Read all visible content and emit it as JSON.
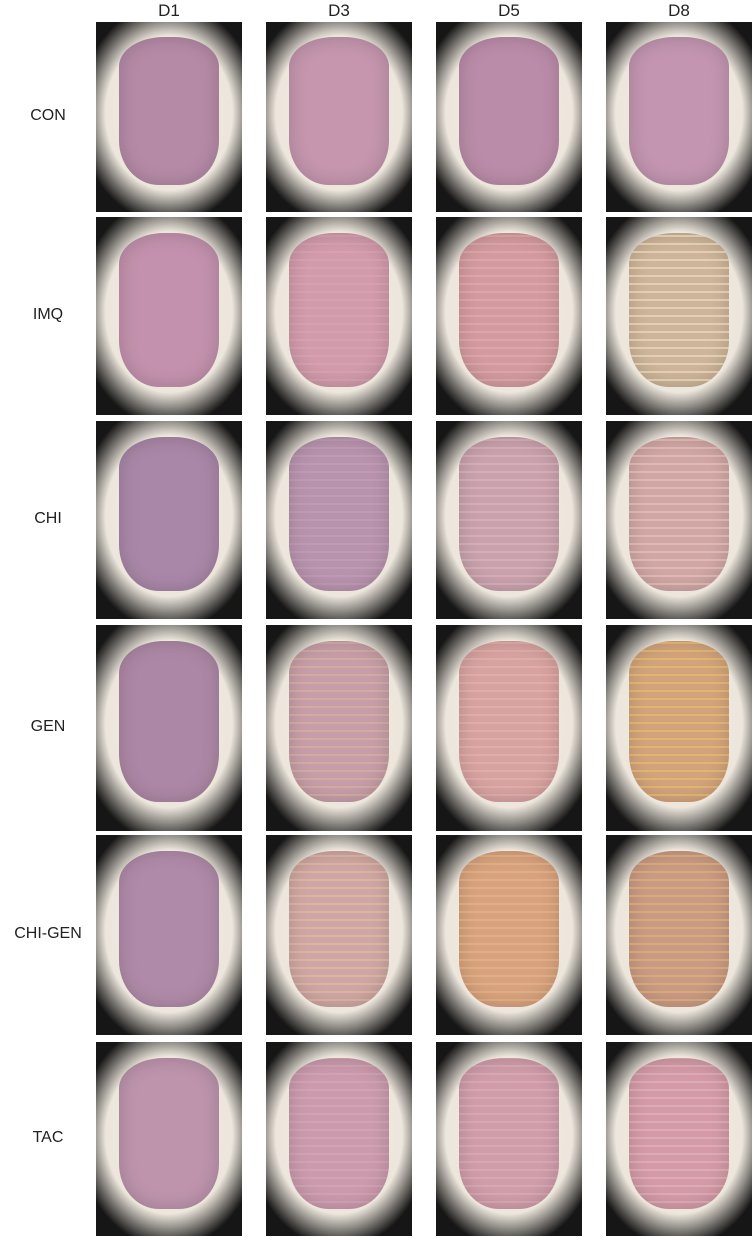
{
  "columns": [
    "D1",
    "D3",
    "D5",
    "D8"
  ],
  "rows": [
    "CON",
    "IMQ",
    "CHI",
    "GEN",
    "CHI-GEN",
    "TAC"
  ],
  "skin_colors": [
    [
      "#b58aa6",
      "#c596ae",
      "#bb8ca9",
      "#c395b0"
    ],
    [
      "#c391ad",
      "#d29aab",
      "#d39a9f",
      "#cdb49a"
    ],
    [
      "#a987a8",
      "#b993ae",
      "#c9a1ad",
      "#d0a6a6"
    ],
    [
      "#ad88a6",
      "#c79ea8",
      "#d8a2a2",
      "#d3a47b"
    ],
    [
      "#b08ba9",
      "#cfa6a3",
      "#d8a280",
      "#c99a84"
    ],
    [
      "#bd94ac",
      "#cb9aad",
      "#d09caa",
      "#d49aa7"
    ]
  ],
  "scale_colors": [
    [
      "rgba(255,255,255,0)",
      "rgba(255,255,255,0)",
      "rgba(255,255,255,0)",
      "rgba(255,255,255,0)"
    ],
    [
      "rgba(255,255,255,0)",
      "rgba(255,255,255,0.08)",
      "rgba(255,230,200,0.18)",
      "rgba(245,230,190,0.55)"
    ],
    [
      "rgba(255,255,255,0)",
      "rgba(255,255,255,0.08)",
      "rgba(255,230,220,0.2)",
      "rgba(245,215,190,0.4)"
    ],
    [
      "rgba(255,255,255,0)",
      "rgba(250,220,150,0.2)",
      "rgba(250,220,180,0.2)",
      "rgba(240,200,110,0.45)"
    ],
    [
      "rgba(255,255,255,0)",
      "rgba(250,225,160,0.25)",
      "rgba(240,200,120,0.35)",
      "rgba(235,190,110,0.45)"
    ],
    [
      "rgba(255,255,255,0)",
      "rgba(255,255,255,0.1)",
      "rgba(255,240,230,0.15)",
      "rgba(255,240,230,0.2)"
    ]
  ]
}
